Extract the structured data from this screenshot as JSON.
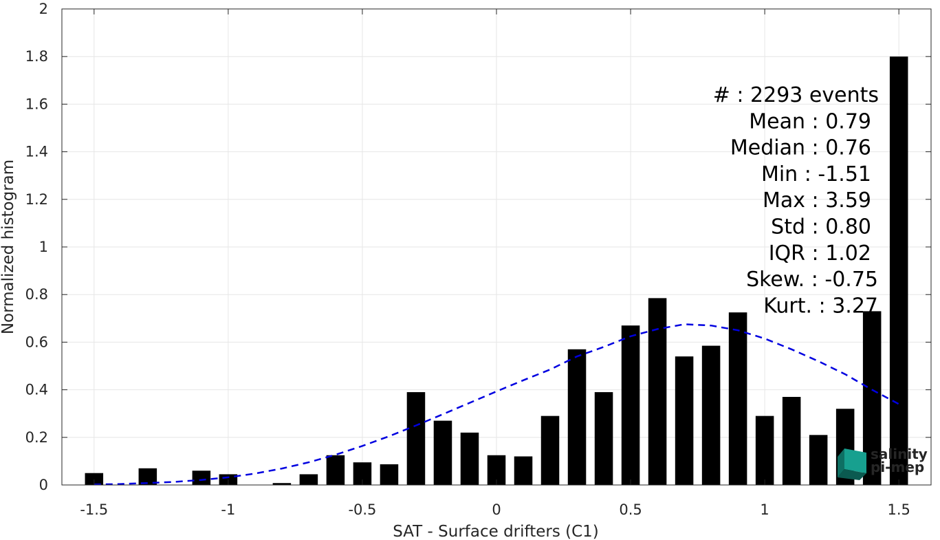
{
  "chart_data": {
    "type": "bar",
    "xlabel": "SAT - Surface drifters (C1)",
    "ylabel": "Normalized histogram",
    "xlim": [
      -1.62,
      1.62
    ],
    "ylim": [
      0,
      2
    ],
    "xticks": [
      -1.5,
      -1,
      -0.5,
      0,
      0.5,
      1,
      1.5
    ],
    "xtick_labels": [
      "-1.5",
      "-1",
      "-0.5",
      "0",
      "0.5",
      "1",
      "1.5"
    ],
    "yticks": [
      0,
      0.2,
      0.4,
      0.6,
      0.8,
      1,
      1.2,
      1.4,
      1.6,
      1.8,
      2
    ],
    "ytick_labels": [
      "0",
      "0.2",
      "0.4",
      "0.6",
      "0.8",
      "1",
      "1.2",
      "1.4",
      "1.6",
      "1.8",
      "2"
    ],
    "grid": true,
    "bar_color": "#000000",
    "bars": {
      "x": [
        -1.5,
        -1.4,
        -1.3,
        -1.2,
        -1.1,
        -1.0,
        -0.9,
        -0.8,
        -0.7,
        -0.6,
        -0.5,
        -0.4,
        -0.3,
        -0.2,
        -0.1,
        0.0,
        0.1,
        0.2,
        0.3,
        0.4,
        0.5,
        0.6,
        0.7,
        0.8,
        0.9,
        1.0,
        1.1,
        1.2,
        1.3,
        1.4,
        1.5
      ],
      "values": [
        0.05,
        0,
        0.07,
        0,
        0.06,
        0.045,
        0,
        0.008,
        0.045,
        0.125,
        0.095,
        0.087,
        0.39,
        0.27,
        0.22,
        0.125,
        0.12,
        0.29,
        0.57,
        0.39,
        0.67,
        0.785,
        0.54,
        0.585,
        0.725,
        0.29,
        0.37,
        0.21,
        0.32,
        0.73,
        1.8
      ]
    },
    "fit_curve": {
      "style": "dashed",
      "color": "#0000e0",
      "x": [
        -1.5,
        -1.4,
        -1.3,
        -1.2,
        -1.1,
        -1.0,
        -0.9,
        -0.8,
        -0.7,
        -0.6,
        -0.5,
        -0.4,
        -0.3,
        -0.2,
        -0.1,
        0.0,
        0.1,
        0.2,
        0.3,
        0.4,
        0.5,
        0.6,
        0.7,
        0.8,
        0.9,
        1.0,
        1.1,
        1.2,
        1.3,
        1.4,
        1.5
      ],
      "values": [
        0.002,
        0.004,
        0.008,
        0.013,
        0.021,
        0.032,
        0.048,
        0.069,
        0.095,
        0.127,
        0.164,
        0.205,
        0.25,
        0.297,
        0.345,
        0.393,
        0.44,
        0.485,
        0.54,
        0.58,
        0.625,
        0.655,
        0.675,
        0.67,
        0.65,
        0.615,
        0.57,
        0.52,
        0.465,
        0.4,
        0.34
      ]
    },
    "annotations": [
      "#  : 2293 events",
      "Mean : 0.79",
      "Median : 0.76",
      "Min : -1.51",
      "Max : 3.59",
      "Std : 0.80",
      "IQR : 1.02",
      "Skew. : -0.75",
      "Kurt. : 3.27"
    ]
  },
  "logo": {
    "line1": "salinity",
    "line2": "pi-mep",
    "color": "#1fa89a"
  }
}
